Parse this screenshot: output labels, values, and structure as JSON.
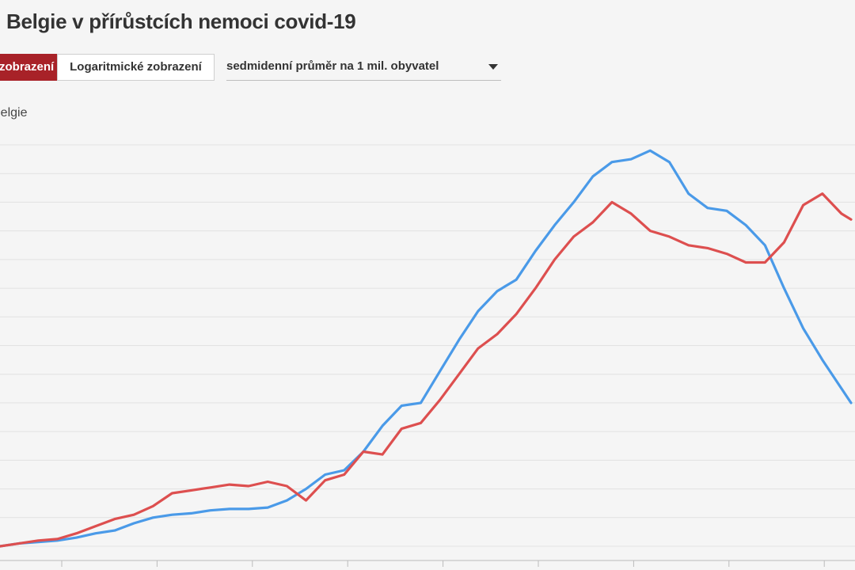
{
  "title": "Belgie v přírůstcích nemoci covid-19",
  "toolbar": {
    "linear_label": "zobrazení",
    "log_label": "Logaritmické zobrazení",
    "select_value": "sedmidenní průměr na 1 mil. obyvatel"
  },
  "series_label": "Belgie",
  "colors": {
    "background": "#f5f5f5",
    "grid": "#e2e2e2",
    "axis": "#bbbbbb",
    "active_button": "#a82228",
    "blue_series": "#4a9ae8",
    "red_series": "#dd4f4f"
  },
  "chart_data": {
    "type": "line",
    "xlabel": "",
    "ylabel": "",
    "ylim": [
      0,
      14
    ],
    "grid": true,
    "x": [
      0,
      2,
      4,
      6,
      8,
      10,
      12,
      14,
      16,
      18,
      20,
      22,
      24,
      26,
      28,
      30,
      32,
      34,
      36,
      38,
      40,
      42,
      44,
      46,
      48,
      50,
      52,
      54,
      56,
      58,
      60,
      62,
      64,
      66,
      68,
      70,
      72,
      74,
      76,
      78,
      80,
      82,
      84,
      86,
      88,
      89
    ],
    "series": [
      {
        "name": "",
        "color": "#4a9ae8",
        "values": [
          0.0,
          0.1,
          0.15,
          0.2,
          0.3,
          0.45,
          0.55,
          0.8,
          1.0,
          1.1,
          1.15,
          1.25,
          1.3,
          1.3,
          1.35,
          1.6,
          2.0,
          2.5,
          2.65,
          3.3,
          4.2,
          4.9,
          5.0,
          6.1,
          7.2,
          8.2,
          8.9,
          9.3,
          10.3,
          11.2,
          12.0,
          12.9,
          13.4,
          13.5,
          13.8,
          13.4,
          12.3,
          11.8,
          11.7,
          11.2,
          10.5,
          9.0,
          7.6,
          6.5,
          5.5,
          5.0
        ]
      },
      {
        "name": "",
        "color": "#dd4f4f",
        "values": [
          0.0,
          0.1,
          0.2,
          0.25,
          0.45,
          0.7,
          0.95,
          1.1,
          1.4,
          1.85,
          1.95,
          2.05,
          2.15,
          2.1,
          2.25,
          2.1,
          1.6,
          2.3,
          2.5,
          3.3,
          3.2,
          4.1,
          4.3,
          5.1,
          6.0,
          6.9,
          7.4,
          8.1,
          9.0,
          10.0,
          10.8,
          11.3,
          12.0,
          11.6,
          11.0,
          10.8,
          10.5,
          10.4,
          10.2,
          9.9,
          9.9,
          10.6,
          11.9,
          12.3,
          11.6,
          11.4
        ]
      }
    ]
  }
}
